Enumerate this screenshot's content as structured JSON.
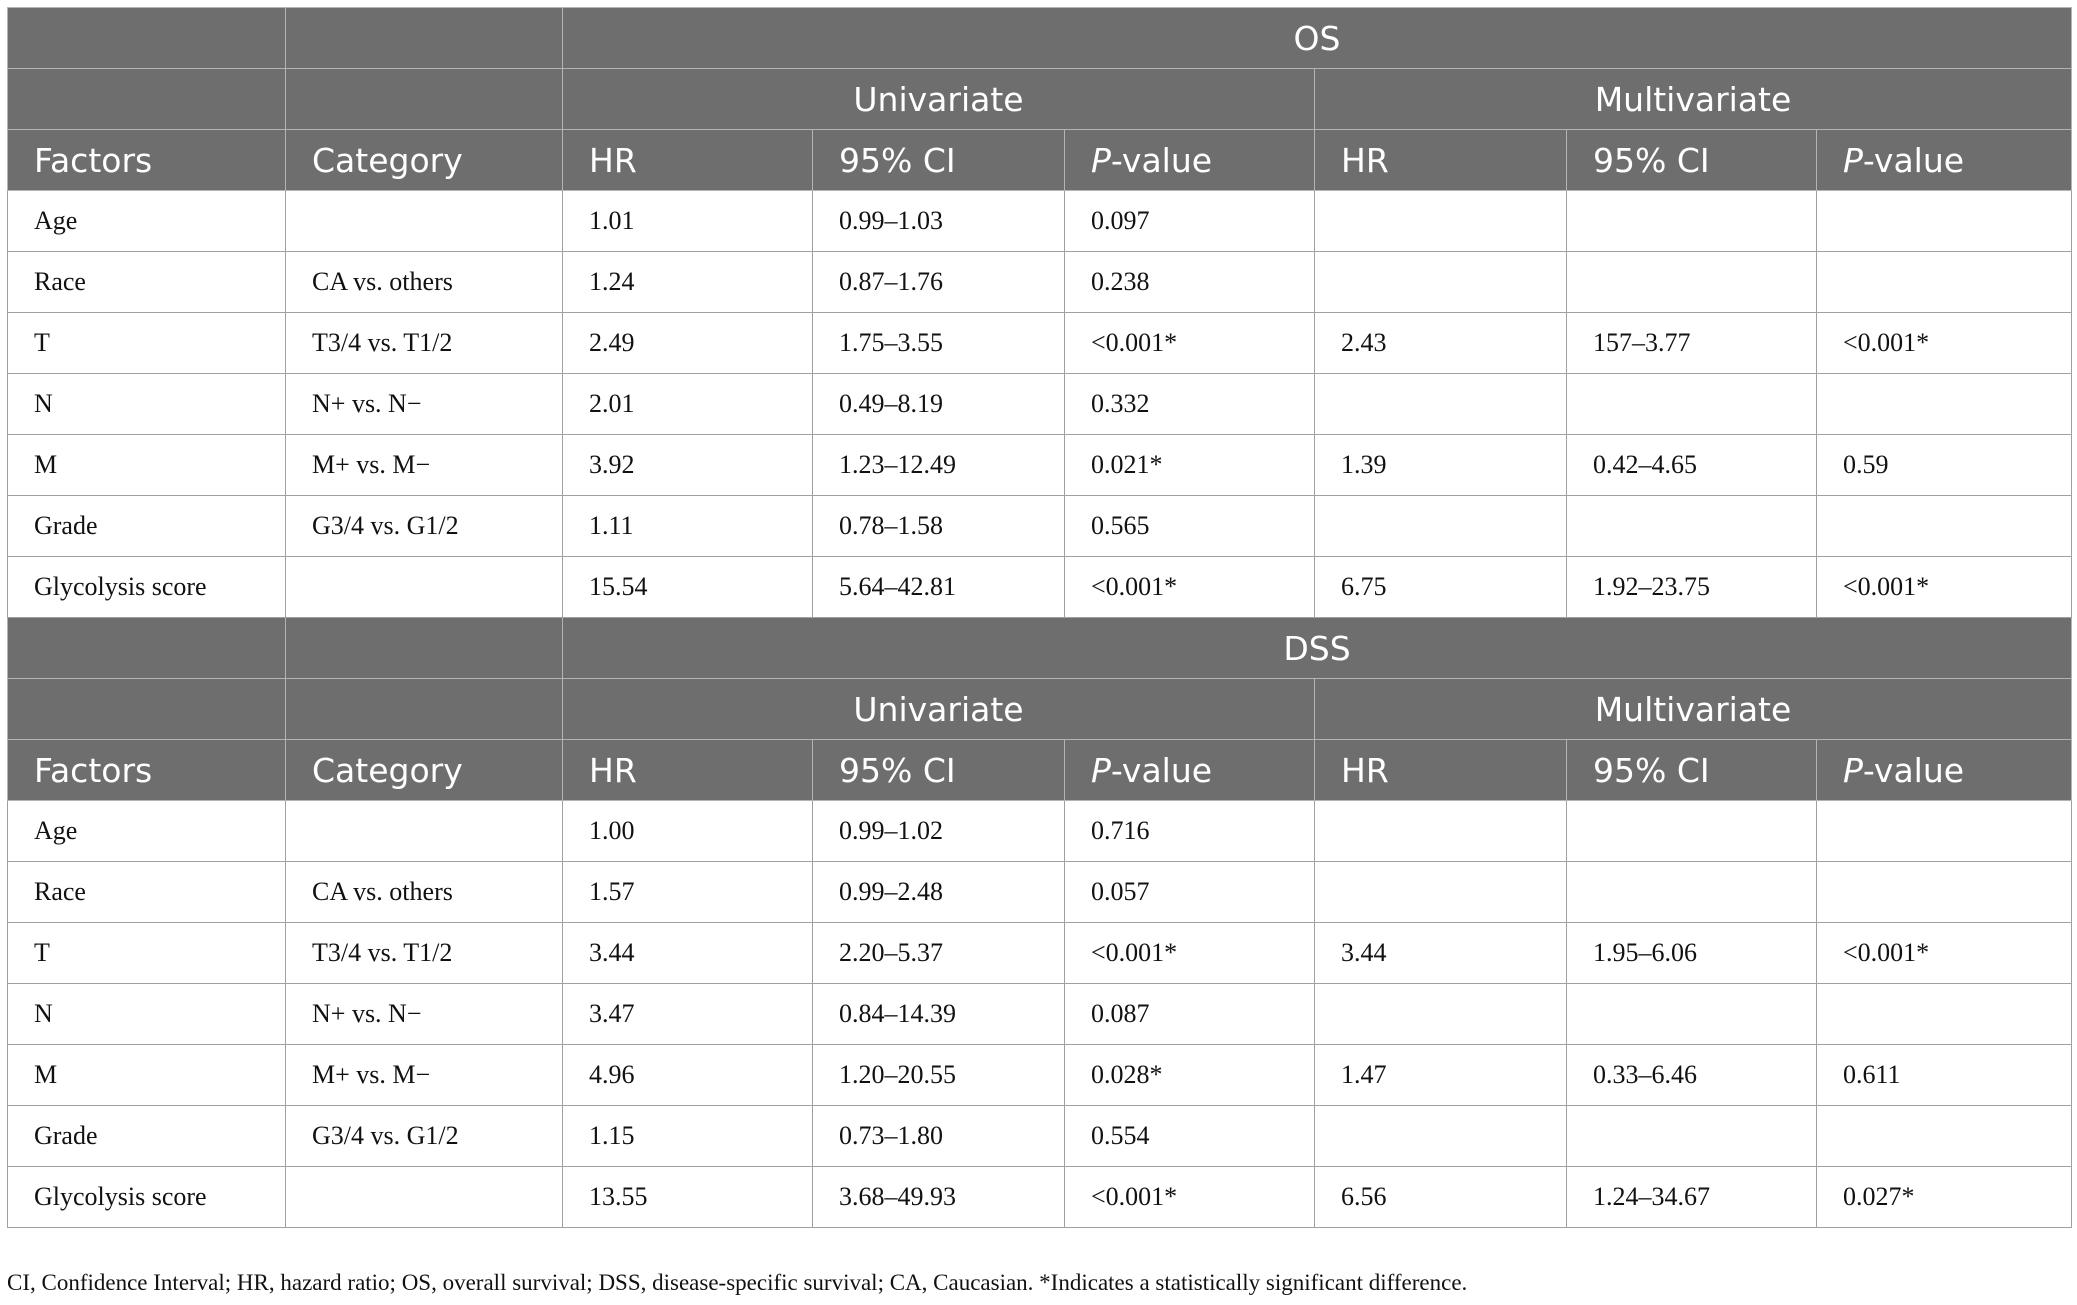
{
  "sections": [
    {
      "title": "OS",
      "groups": [
        "Univariate",
        "Multivariate"
      ],
      "header": [
        "Factors",
        "Category",
        "HR",
        "95% CI",
        {
          "italic": "P",
          "text": "-value"
        },
        "HR",
        "95% CI",
        {
          "italic": "P",
          "text": "-value"
        }
      ],
      "rows": [
        [
          "Age",
          null,
          "1.01",
          "0.99–1.03",
          "0.097",
          null,
          null,
          null
        ],
        [
          "Race",
          "CA vs. others",
          "1.24",
          "0.87–1.76",
          "0.238",
          null,
          null,
          null
        ],
        [
          "T",
          "T3/4 vs. T1/2",
          "2.49",
          "1.75–3.55",
          "<0.001*",
          "2.43",
          "157–3.77",
          "<0.001*"
        ],
        [
          "N",
          "N+ vs. N−",
          "2.01",
          "0.49–8.19",
          "0.332",
          null,
          null,
          null
        ],
        [
          "M",
          "M+ vs. M−",
          "3.92",
          "1.23–12.49",
          "0.021*",
          "1.39",
          "0.42–4.65",
          "0.59"
        ],
        [
          "Grade",
          "G3/4 vs. G1/2",
          "1.11",
          "0.78–1.58",
          "0.565",
          null,
          null,
          null
        ],
        [
          "Glycolysis score",
          null,
          "15.54",
          "5.64–42.81",
          "<0.001*",
          "6.75",
          "1.92–23.75",
          "<0.001*"
        ]
      ]
    },
    {
      "title": "DSS",
      "groups": [
        "Univariate",
        "Multivariate"
      ],
      "header": [
        "Factors",
        "Category",
        "HR",
        "95% CI",
        {
          "italic": "P",
          "text": "-value"
        },
        "HR",
        "95% CI",
        {
          "italic": "P",
          "text": "-value"
        }
      ],
      "rows": [
        [
          "Age",
          null,
          "1.00",
          "0.99–1.02",
          "0.716",
          null,
          null,
          null
        ],
        [
          "Race",
          "CA vs. others",
          "1.57",
          "0.99–2.48",
          "0.057",
          null,
          null,
          null
        ],
        [
          "T",
          "T3/4 vs. T1/2",
          "3.44",
          "2.20–5.37",
          "<0.001*",
          "3.44",
          "1.95–6.06",
          "<0.001*"
        ],
        [
          "N",
          "N+ vs. N−",
          "3.47",
          "0.84–14.39",
          "0.087",
          null,
          null,
          null
        ],
        [
          "M",
          "M+ vs. M−",
          "4.96",
          "1.20–20.55",
          "0.028*",
          "1.47",
          "0.33–6.46",
          "0.611"
        ],
        [
          "Grade",
          "G3/4 vs. G1/2",
          "1.15",
          "0.73–1.80",
          "0.554",
          null,
          null,
          null
        ],
        [
          "Glycolysis score",
          null,
          "13.55",
          "3.68–49.93",
          "<0.001*",
          "6.56",
          "1.24–34.67",
          "0.027*"
        ]
      ]
    }
  ],
  "footnote": "CI, Confidence Interval; HR, hazard ratio; OS, overall survival; DSS, disease-specific survival; CA, Caucasian. *Indicates a statistically significant difference."
}
